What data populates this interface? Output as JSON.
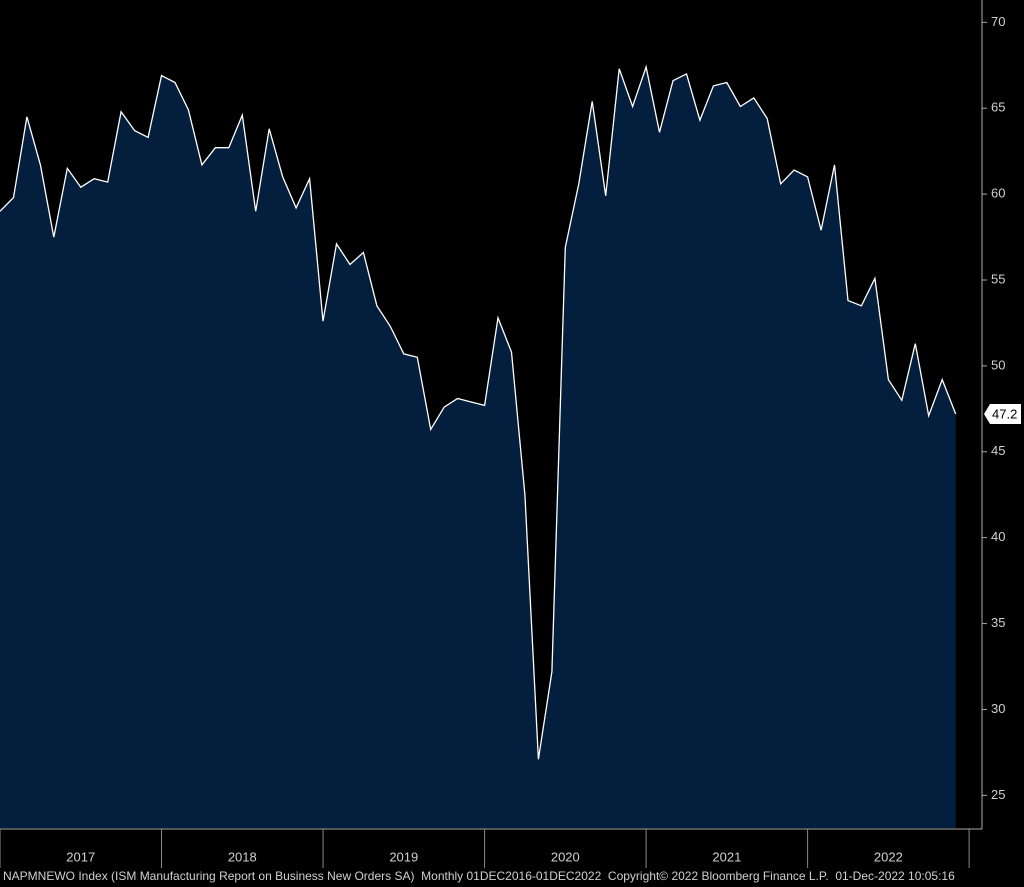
{
  "chart_data": {
    "type": "area",
    "categories": [
      null,
      null,
      null,
      null,
      null,
      null,
      null,
      null,
      null,
      null,
      null,
      null,
      null,
      null,
      null,
      null,
      null,
      null,
      null,
      null,
      null,
      null,
      null,
      null,
      null,
      null,
      null,
      null,
      null,
      null,
      null,
      null,
      null,
      null,
      null,
      null,
      null,
      null,
      null,
      null,
      null,
      null,
      null,
      null,
      null,
      null,
      null,
      null,
      null,
      null,
      null,
      null,
      null,
      null,
      null,
      null,
      null,
      null,
      null,
      null,
      null,
      null,
      null,
      null,
      null,
      null,
      null,
      null,
      null,
      null,
      null,
      null
    ],
    "values": [
      59.0,
      59.8,
      64.5,
      61.7,
      57.5,
      61.5,
      60.4,
      60.9,
      60.7,
      64.8,
      63.7,
      63.3,
      66.9,
      66.5,
      64.9,
      61.7,
      62.7,
      62.7,
      64.6,
      59.0,
      63.8,
      61.0,
      59.2,
      60.9,
      52.6,
      57.1,
      55.9,
      56.6,
      53.5,
      52.3,
      50.7,
      50.5,
      46.3,
      47.6,
      48.1,
      47.9,
      47.7,
      52.8,
      50.8,
      42.5,
      27.1,
      32.2,
      56.9,
      60.6,
      65.4,
      59.9,
      67.3,
      65.1,
      67.4,
      63.6,
      66.6,
      67.0,
      64.3,
      66.3,
      66.5,
      65.1,
      65.6,
      64.4,
      60.6,
      61.4,
      61.0,
      57.9,
      61.7,
      53.8,
      53.5,
      55.1,
      49.2,
      48.0,
      51.3,
      47.1,
      49.2,
      47.2
    ],
    "year_labels": [
      "2017",
      "2018",
      "2019",
      "2020",
      "2021",
      "2022"
    ],
    "line_color": "#ffffff",
    "fill_color": "#041e3d",
    "ylim": [
      23.1,
      71.3
    ],
    "yticks": [
      25,
      30,
      35,
      40,
      45,
      50,
      55,
      60,
      65,
      70
    ],
    "footer": "NAPMNEWO Index (ISM Manufacturing Report on Business New Orders SA)  Monthly 01DEC2016-01DEC2022  Copyright© 2022 Bloomberg Finance L.P.  01-Dec-2022 10:05:16"
  }
}
